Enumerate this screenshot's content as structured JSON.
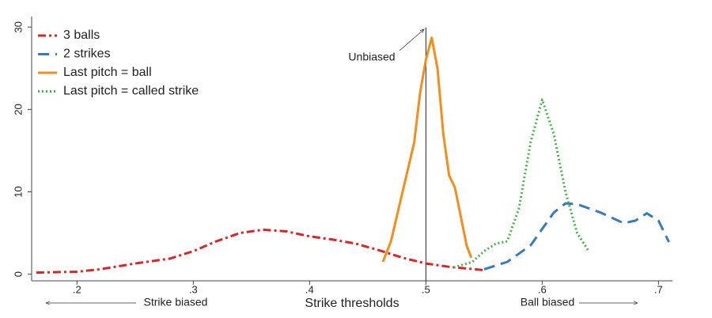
{
  "chart_data": {
    "type": "line",
    "xlabel": "Strike thresholds",
    "xlim": [
      0.161,
      0.712
    ],
    "ylim": [
      -0.8,
      30.5
    ],
    "xticks": [
      {
        "value": 0.2,
        "label": ".2"
      },
      {
        "value": 0.3,
        "label": ".3"
      },
      {
        "value": 0.4,
        "label": ".4"
      },
      {
        "value": 0.5,
        "label": ".5"
      },
      {
        "value": 0.6,
        "label": ".6"
      },
      {
        "value": 0.7,
        "label": ".7"
      }
    ],
    "yticks": [
      0,
      10,
      20,
      30
    ],
    "reference_line_x": 0.5,
    "annotations": [
      "Unbiased",
      "Strike biased",
      "Ball biased"
    ],
    "legend": "upper left",
    "series": [
      {
        "name": "3 balls",
        "color": "#d62728",
        "style": "dashdot",
        "x": [
          0.165,
          0.2,
          0.22,
          0.25,
          0.28,
          0.3,
          0.32,
          0.34,
          0.36,
          0.38,
          0.4,
          0.42,
          0.44,
          0.46,
          0.48,
          0.5,
          0.52,
          0.55
        ],
        "values": [
          0.2,
          0.3,
          0.6,
          1.3,
          1.9,
          2.8,
          4.0,
          5.0,
          5.4,
          5.2,
          4.6,
          4.2,
          3.7,
          2.9,
          2.0,
          1.3,
          0.9,
          0.5
        ]
      },
      {
        "name": "2 strikes",
        "color": "#3a7ab8",
        "style": "dashed",
        "x": [
          0.55,
          0.57,
          0.59,
          0.6,
          0.61,
          0.62,
          0.63,
          0.65,
          0.67,
          0.68,
          0.69,
          0.7,
          0.709
        ],
        "values": [
          0.6,
          1.5,
          3.5,
          5.5,
          7.5,
          8.6,
          8.5,
          7.5,
          6.2,
          6.5,
          7.4,
          6.5,
          3.9
        ]
      },
      {
        "name": "Last pitch = ball",
        "color": "#f28e1c",
        "style": "solid",
        "x": [
          0.463,
          0.47,
          0.48,
          0.49,
          0.495,
          0.5,
          0.505,
          0.51,
          0.515,
          0.52,
          0.525,
          0.53,
          0.535,
          0.539
        ],
        "values": [
          1.5,
          4.0,
          10,
          16,
          22,
          26,
          28.7,
          25,
          17,
          12,
          10.5,
          7,
          3.5,
          2.0
        ]
      },
      {
        "name": "Last pitch = called strike",
        "color": "#4caf50",
        "style": "dotted",
        "x": [
          0.524,
          0.54,
          0.55,
          0.56,
          0.57,
          0.58,
          0.59,
          0.6,
          0.61,
          0.62,
          0.63,
          0.64
        ],
        "values": [
          0.8,
          1.5,
          2.8,
          3.7,
          4.0,
          8,
          16,
          21.2,
          17,
          10,
          5,
          2.8
        ]
      }
    ]
  }
}
